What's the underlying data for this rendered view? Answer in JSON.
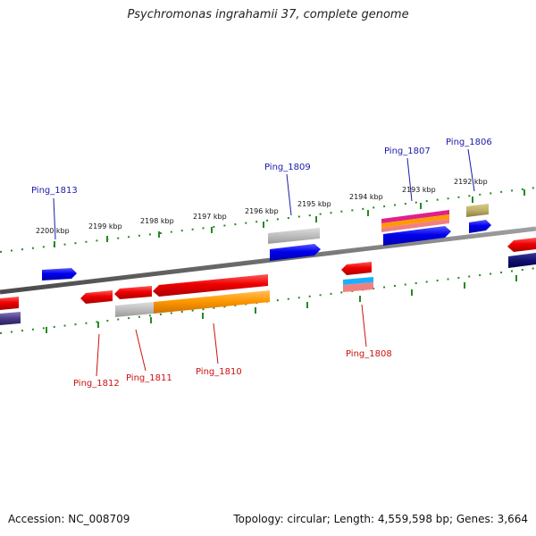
{
  "title": "Psychromonas ingrahamii 37, complete genome",
  "footer": {
    "accession": "Accession: NC_008709",
    "summary": "Topology: circular; Length: 4,559,598 bp; Genes: 3,664"
  },
  "colors": {
    "backbone": "#7a7a7a",
    "tick": "#228b22",
    "forward_label": "#1a1aa8",
    "reverse_label": "#cc1111"
  },
  "scale_labels": [
    "2200 kbp",
    "2199 kbp",
    "2198 kbp",
    "2197 kbp",
    "2196 kbp",
    "2195 kbp",
    "2194 kbp",
    "2193 kbp",
    "2192 kbp"
  ],
  "gene_labels": {
    "forward": [
      "Ping_1813",
      "Ping_1809",
      "Ping_1807",
      "Ping_1806"
    ],
    "reverse": [
      "Ping_1812",
      "Ping_1811",
      "Ping_1810",
      "Ping_1808"
    ]
  }
}
